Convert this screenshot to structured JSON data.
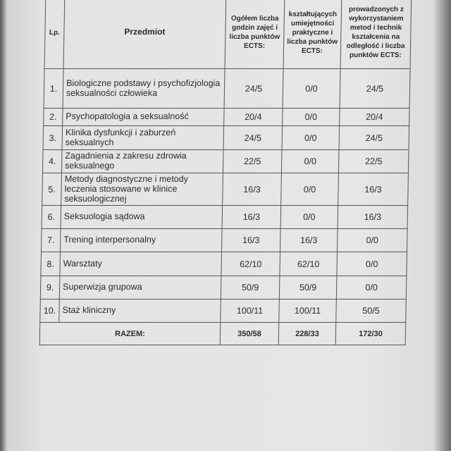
{
  "headers": {
    "lp": "Lp.",
    "subject": "Przedmiot",
    "total": "Ogółem liczba godzin zajęć i liczba punktów ECTS:",
    "practical": "kształtujących umiejętności praktyczne i liczba punktów ECTS:",
    "remote": "prowadzonych z wykorzystaniem metod i technik kształcenia na odległość i liczba punktów ECTS:"
  },
  "rows": [
    {
      "lp": "1.",
      "subject": "Biologiczne podstawy i psychofizjologia seksualności człowieka",
      "total": "24/5",
      "practical": "0/0",
      "remote": "24/5"
    },
    {
      "lp": "2.",
      "subject": "Psychopatologia a seksualność",
      "total": "20/4",
      "practical": "0/0",
      "remote": "20/4"
    },
    {
      "lp": "3.",
      "subject": "Klinika dysfunkcji i zaburzeń seksualnych",
      "total": "24/5",
      "practical": "0/0",
      "remote": "24/5"
    },
    {
      "lp": "4.",
      "subject": "Zagadnienia z zakresu zdrowia seksualnego",
      "total": "22/5",
      "practical": "0/0",
      "remote": "22/5"
    },
    {
      "lp": "5.",
      "subject": "Metody diagnostyczne i metody leczenia stosowane w klinice seksuologicznej",
      "total": "16/3",
      "practical": "0/0",
      "remote": "16/3"
    },
    {
      "lp": "6.",
      "subject": "Seksuologia sądowa",
      "total": "16/3",
      "practical": "0/0",
      "remote": "16/3"
    },
    {
      "lp": "7.",
      "subject": "Trening interpersonalny",
      "total": "16/3",
      "practical": "16/3",
      "remote": "0/0"
    },
    {
      "lp": "8.",
      "subject": "Warsztaty",
      "total": "62/10",
      "practical": "62/10",
      "remote": "0/0"
    },
    {
      "lp": "9.",
      "subject": "Superwizja grupowa",
      "total": "50/9",
      "practical": "50/9",
      "remote": "0/0"
    },
    {
      "lp": "10.",
      "subject": "Staż kliniczny",
      "total": "100/11",
      "practical": "100/11",
      "remote": "50/5"
    }
  ],
  "totals": {
    "label": "RAZEM:",
    "total": "350/58",
    "practical": "228/33",
    "remote": "172/30"
  }
}
